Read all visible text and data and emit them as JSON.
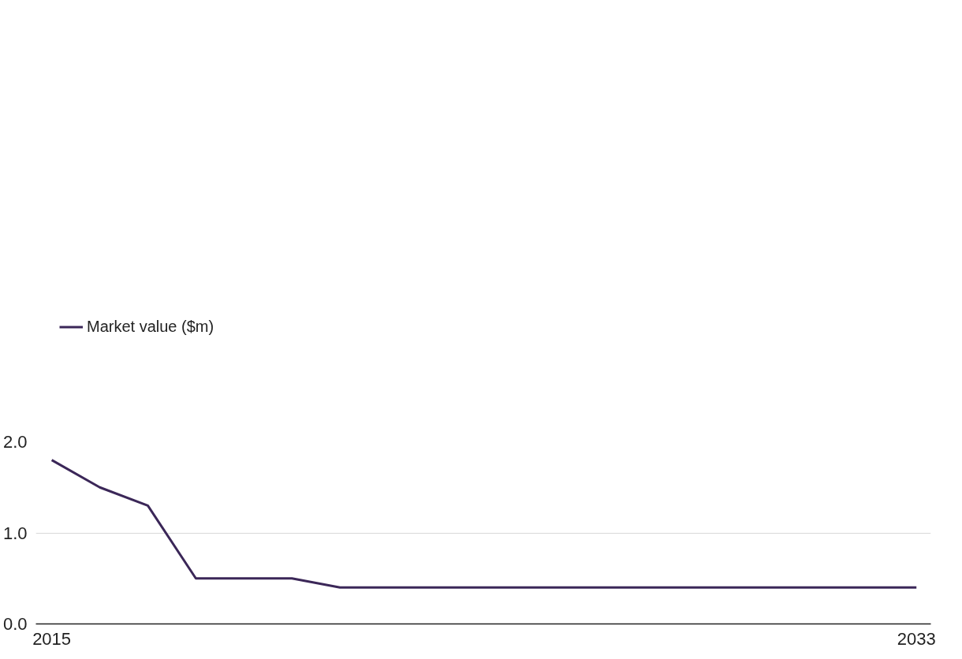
{
  "chart_data": {
    "type": "line",
    "x": [
      2015,
      2016,
      2017,
      2018,
      2019,
      2020,
      2021,
      2022,
      2023,
      2024,
      2025,
      2026,
      2027,
      2028,
      2029,
      2030,
      2031,
      2032,
      2033
    ],
    "series": [
      {
        "name": "Market value ($m)",
        "color": "#3b2758",
        "values": [
          1.8,
          1.5,
          1.3,
          0.5,
          0.5,
          0.5,
          0.4,
          0.4,
          0.4,
          0.4,
          0.4,
          0.4,
          0.4,
          0.4,
          0.4,
          0.4,
          0.4,
          0.4,
          0.4
        ]
      }
    ],
    "xlim": [
      2014.67,
      2033.3
    ],
    "xticks": [
      2015,
      2033
    ],
    "ylim": [
      0,
      2.0
    ],
    "yticks": [
      {
        "value": 0,
        "label": "0.0"
      },
      {
        "value": 1,
        "label": "1.0"
      },
      {
        "value": 2,
        "label": "2.0"
      }
    ],
    "grid": "y",
    "legend": "top left",
    "marker": "none",
    "line_style": "solid"
  }
}
